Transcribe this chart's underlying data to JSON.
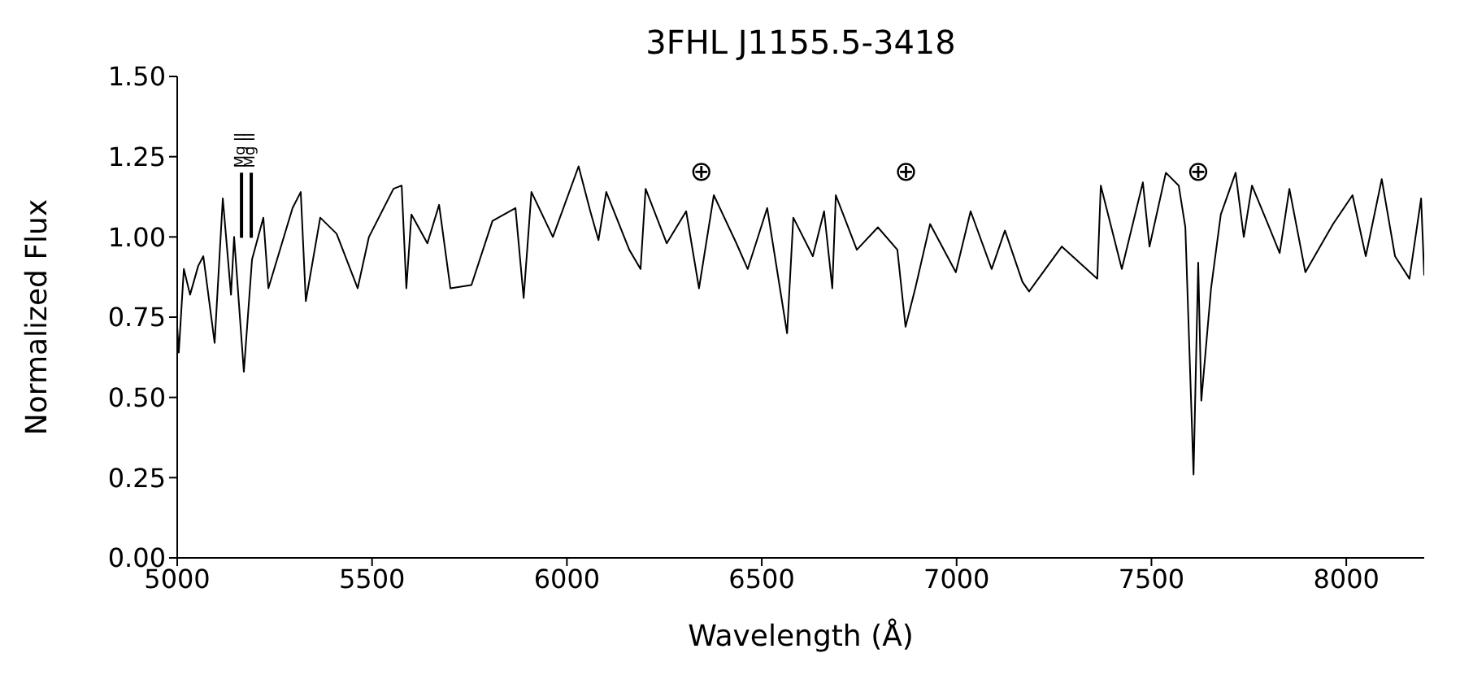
{
  "chart_data": {
    "type": "line",
    "title": "3FHL J1155.5-3418",
    "xlabel": "Wavelength (Å)",
    "ylabel": "Normalized Flux",
    "xlim": [
      5000,
      8200
    ],
    "xticks": [
      5000,
      5500,
      6000,
      6500,
      7000,
      7500,
      8000
    ],
    "ylim": [
      0,
      1.5
    ],
    "yticks": [
      {
        "value": 0,
        "label": "0.00"
      },
      {
        "value": 0.25,
        "label": "0.25"
      },
      {
        "value": 0.5,
        "label": "0.50"
      },
      {
        "value": 0.75,
        "label": "0.75"
      },
      {
        "value": 1,
        "label": "1.00"
      },
      {
        "value": 1.25,
        "label": "1.25"
      },
      {
        "value": 1.5,
        "label": "1.50"
      }
    ],
    "grid": false,
    "legend": false,
    "marker": "none",
    "line_style": "solid",
    "annotations": [
      "Mg II",
      "Mg II",
      "⊕",
      "⊕",
      "⊕"
    ],
    "series": [
      {
        "color": "#000000",
        "x": [
          5000,
          5004,
          5017,
          5033,
          5054,
          5067,
          5096,
          5117,
          5138,
          5146,
          5171,
          5192,
          5221,
          5234,
          5296,
          5317,
          5330,
          5367,
          5409,
          5463,
          5492,
          5555,
          5576,
          5588,
          5601,
          5642,
          5672,
          5701,
          5755,
          5809,
          5868,
          5889,
          5909,
          5964,
          6030,
          6060,
          6081,
          6101,
          6160,
          6189,
          6202,
          6256,
          6306,
          6339,
          6377,
          6435,
          6464,
          6514,
          6565,
          6581,
          6631,
          6660,
          6681,
          6690,
          6744,
          6798,
          6848,
          6869,
          6894,
          6932,
          6998,
          7036,
          7090,
          7124,
          7169,
          7186,
          7270,
          7361,
          7370,
          7424,
          7478,
          7495,
          7537,
          7570,
          7587,
          7608,
          7620,
          7628,
          7653,
          7678,
          7716,
          7737,
          7758,
          7799,
          7829,
          7854,
          7895,
          7966,
          8016,
          8050,
          8091,
          8125,
          8162,
          8192,
          8200
        ],
        "values": [
          0.72,
          0.64,
          0.9,
          0.82,
          0.91,
          0.94,
          0.67,
          1.12,
          0.82,
          1.0,
          0.58,
          0.93,
          1.06,
          0.84,
          1.09,
          1.14,
          0.8,
          1.06,
          1.01,
          0.84,
          1.0,
          1.15,
          1.16,
          0.84,
          1.07,
          0.98,
          1.1,
          0.84,
          0.85,
          1.05,
          1.09,
          0.81,
          1.14,
          1.0,
          1.22,
          1.08,
          0.99,
          1.14,
          0.96,
          0.9,
          1.15,
          0.98,
          1.08,
          0.84,
          1.13,
          0.98,
          0.9,
          1.09,
          0.7,
          1.06,
          0.94,
          1.08,
          0.84,
          1.13,
          0.96,
          1.03,
          0.96,
          0.72,
          0.84,
          1.04,
          0.89,
          1.08,
          0.9,
          1.02,
          0.86,
          0.83,
          0.97,
          0.87,
          1.16,
          0.9,
          1.17,
          0.97,
          1.2,
          1.16,
          1.03,
          0.26,
          0.92,
          0.49,
          0.84,
          1.07,
          1.2,
          1.0,
          1.16,
          1.04,
          0.95,
          1.15,
          0.89,
          1.04,
          1.13,
          0.94,
          1.18,
          0.94,
          0.87,
          1.12,
          0.88
        ]
      }
    ]
  }
}
